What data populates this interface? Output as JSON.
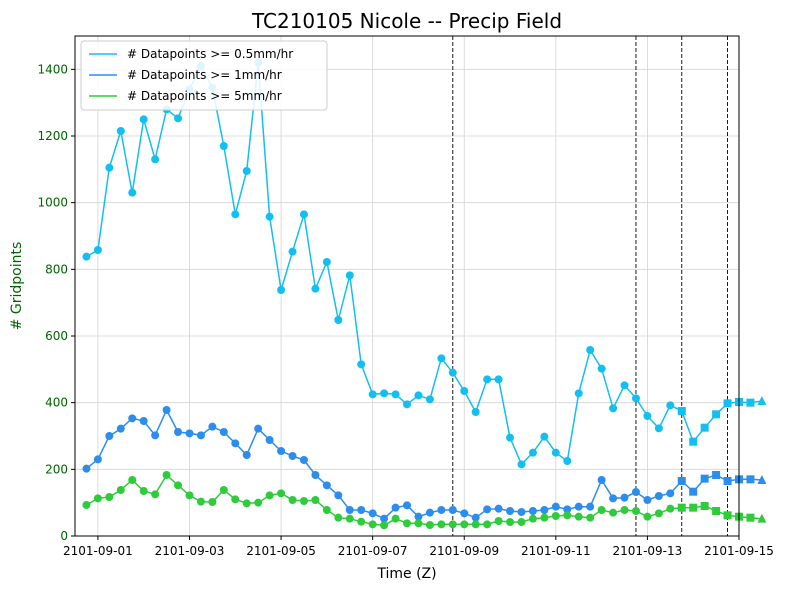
{
  "chart_data": {
    "type": "line",
    "title": "TC210105 Nicole -- Precip Field",
    "xlabel": "Time (Z)",
    "ylabel": "# Gridpoints",
    "ylim": [
      0,
      1500
    ],
    "xlim": [
      "2101-08-31T12:00",
      "2101-09-15T00:00"
    ],
    "x_ticks": [
      "2101-09-01",
      "2101-09-03",
      "2101-09-05",
      "2101-09-07",
      "2101-09-09",
      "2101-09-11",
      "2101-09-13",
      "2101-09-15"
    ],
    "y_ticks": [
      0,
      200,
      400,
      600,
      800,
      1000,
      1200,
      1400
    ],
    "grid": true,
    "legend_position": "top-left",
    "vertical_lines": [
      "2101-09-08T18:00",
      "2101-09-12T18:00",
      "2101-09-13T18:00",
      "2101-09-14T18:00"
    ],
    "x_start": "2101-08-31T18:00",
    "x_step_hours": 6,
    "marker_segments": [
      {
        "marker": "circle",
        "from": 0,
        "to": 51
      },
      {
        "marker": "square",
        "from": 52,
        "to": 58
      },
      {
        "marker": "triangle",
        "from": 59,
        "to": 59
      }
    ],
    "series": [
      {
        "name": "# Datapoints >= 0.5mm/hr",
        "color": "#13bff0",
        "values": [
          838,
          858,
          1105,
          1215,
          1030,
          1250,
          1130,
          1280,
          1253,
          1340,
          1410,
          1345,
          1170,
          965,
          1095,
          1420,
          958,
          738,
          853,
          965,
          742,
          822,
          648,
          782,
          515,
          425,
          428,
          425,
          395,
          422,
          410,
          533,
          490,
          435,
          372,
          470,
          470,
          295,
          215,
          250,
          298,
          250,
          225,
          428,
          558,
          502,
          383,
          452,
          413,
          360,
          323,
          392,
          375,
          283,
          325,
          365,
          398,
          402,
          400,
          405
        ]
      },
      {
        "name": "# Datapoints >= 1mm/hr",
        "color": "#2b8ded",
        "values": [
          202,
          230,
          300,
          322,
          353,
          345,
          302,
          378,
          312,
          308,
          302,
          328,
          312,
          278,
          243,
          322,
          288,
          255,
          240,
          228,
          183,
          152,
          122,
          78,
          78,
          68,
          52,
          85,
          92,
          58,
          70,
          78,
          78,
          68,
          55,
          80,
          82,
          75,
          72,
          75,
          78,
          88,
          80,
          88,
          88,
          168,
          113,
          115,
          132,
          108,
          120,
          128,
          165,
          133,
          172,
          183,
          165,
          170,
          170,
          168
        ]
      },
      {
        "name": "# Datapoints >= 5mm/hr",
        "color": "#2ecc3a",
        "values": [
          93,
          113,
          117,
          138,
          168,
          135,
          125,
          183,
          152,
          122,
          103,
          102,
          138,
          110,
          98,
          100,
          122,
          128,
          108,
          105,
          108,
          78,
          55,
          52,
          43,
          35,
          32,
          52,
          38,
          38,
          33,
          35,
          35,
          35,
          35,
          35,
          45,
          42,
          42,
          52,
          55,
          60,
          62,
          58,
          55,
          78,
          70,
          78,
          75,
          58,
          68,
          82,
          85,
          85,
          90,
          75,
          62,
          58,
          55,
          52
        ]
      }
    ]
  }
}
